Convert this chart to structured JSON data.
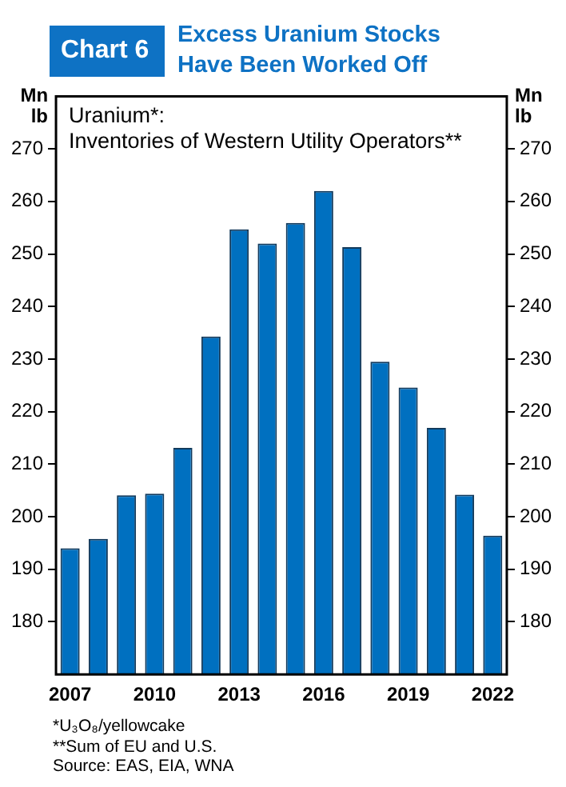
{
  "chart_data": {
    "type": "bar",
    "title": "Excess Uranium Stocks Have Been Worked Off",
    "subtitle": "Chart 6",
    "categories": [
      "2007",
      null,
      null,
      "2010",
      null,
      null,
      "2013",
      null,
      null,
      "2016",
      null,
      null,
      "2019",
      null,
      null,
      "2022"
    ],
    "values": [
      194,
      195.8,
      204.1,
      204.4,
      213.1,
      234.3,
      254.7,
      252,
      255.9,
      262,
      251.3,
      229.5,
      224.6,
      216.9,
      204.2,
      196.4
    ],
    "color": "#0070c0",
    "ylabel": "Mn lb",
    "y2label": "Mn lb",
    "ylim": [
      170,
      280
    ],
    "yticks": [
      180,
      190,
      200,
      210,
      220,
      230,
      240,
      250,
      260,
      270
    ],
    "y2lim": [
      170,
      280
    ],
    "y2ticks": [
      180,
      190,
      200,
      210,
      220,
      230,
      240,
      250,
      260,
      270
    ],
    "grid": false,
    "legend": false,
    "annotations": [
      "Uranium*:",
      "Inventories of Western Utility Operators**",
      "*U₃O₈/yellowcake",
      "**Sum of EU and U.S.",
      "Source: EAS, EIA, WNA"
    ]
  }
}
